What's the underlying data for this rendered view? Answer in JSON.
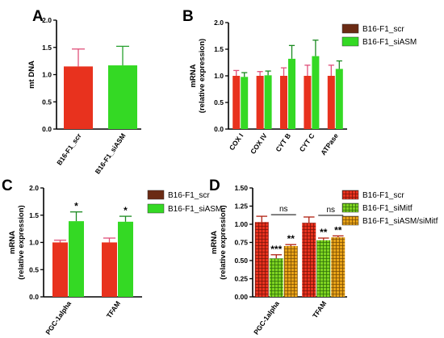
{
  "colors": {
    "scr": "#e8321e",
    "siASM": "#34d924",
    "siMitf": "#7ed321",
    "siASM_siMitf": "#e8a317",
    "legend_scr": "#6b2b14",
    "legend_siASM": "#3a7d0f"
  },
  "chart_data": [
    {
      "panel": "A",
      "type": "bar",
      "categories": [
        "B16-F1_scr",
        "B16-F1_siASM"
      ],
      "ylabel": "mt DNA",
      "ylim": [
        0,
        2.0
      ],
      "yticks": [
        "0.0",
        "0.5",
        "1.0",
        "1.5",
        "2.0"
      ],
      "series": [
        {
          "values": [
            1.15,
            1.17
          ],
          "errors": [
            0.32,
            0.35
          ]
        }
      ]
    },
    {
      "panel": "B",
      "type": "bar",
      "categories": [
        "COX I",
        "COX IV",
        "CYT B",
        "CYT C",
        "ATPase"
      ],
      "ylabel": "mRNA",
      "ylabel2": "(relative expression)",
      "ylim": [
        0,
        2.0
      ],
      "yticks": [
        "0.0",
        "0.5",
        "1.0",
        "1.5",
        "2.0"
      ],
      "legend": [
        "B16-F1_scr",
        "B16-F1_siASM"
      ],
      "series": [
        {
          "name": "B16-F1_scr",
          "values": [
            1.0,
            1.0,
            1.0,
            1.0,
            1.0
          ],
          "errors": [
            0.1,
            0.08,
            0.15,
            0.2,
            0.2
          ]
        },
        {
          "name": "B16-F1_siASM",
          "values": [
            0.98,
            1.01,
            1.32,
            1.37,
            1.13
          ],
          "errors": [
            0.08,
            0.08,
            0.25,
            0.3,
            0.15
          ]
        }
      ]
    },
    {
      "panel": "C",
      "type": "bar",
      "categories": [
        "PGC-1alpha",
        "TFAM"
      ],
      "ylabel": "mRNA",
      "ylabel2": "(relative expression)",
      "ylim": [
        0,
        2.0
      ],
      "yticks": [
        "0.0",
        "0.5",
        "1.0",
        "1.5",
        "2.0"
      ],
      "legend": [
        "B16-F1_scr",
        "B16-F1_siASM"
      ],
      "significance": [
        [
          "",
          "*"
        ],
        [
          "",
          "*"
        ]
      ],
      "series": [
        {
          "name": "B16-F1_scr",
          "values": [
            1.0,
            1.0
          ],
          "errors": [
            0.04,
            0.08
          ]
        },
        {
          "name": "B16-F1_siASM",
          "values": [
            1.39,
            1.38
          ],
          "errors": [
            0.17,
            0.1
          ]
        }
      ]
    },
    {
      "panel": "D",
      "type": "bar",
      "categories": [
        "PGC-1alpha",
        "TFAM"
      ],
      "ylabel": "mRNA",
      "ylabel2": "(relative expression)",
      "ylim": [
        0,
        1.5
      ],
      "yticks": [
        "0.00",
        "0.25",
        "0.50",
        "0.75",
        "1.00",
        "1.25",
        "1.50"
      ],
      "legend": [
        "B16-F1_scr",
        "B16-F1_siMitf",
        "B16-F1_siASM/siMitf"
      ],
      "significance": [
        [
          "",
          "***",
          "**"
        ],
        [
          "",
          "**",
          "**"
        ]
      ],
      "ns_label": "ns",
      "series": [
        {
          "name": "B16-F1_scr",
          "values": [
            1.03,
            1.02
          ],
          "errors": [
            0.08,
            0.08
          ]
        },
        {
          "name": "B16-F1_siMitf",
          "values": [
            0.53,
            0.78
          ],
          "errors": [
            0.05,
            0.03
          ]
        },
        {
          "name": "B16-F1_siASM/siMitf",
          "values": [
            0.7,
            0.82
          ],
          "errors": [
            0.02,
            0.02
          ]
        }
      ]
    }
  ]
}
